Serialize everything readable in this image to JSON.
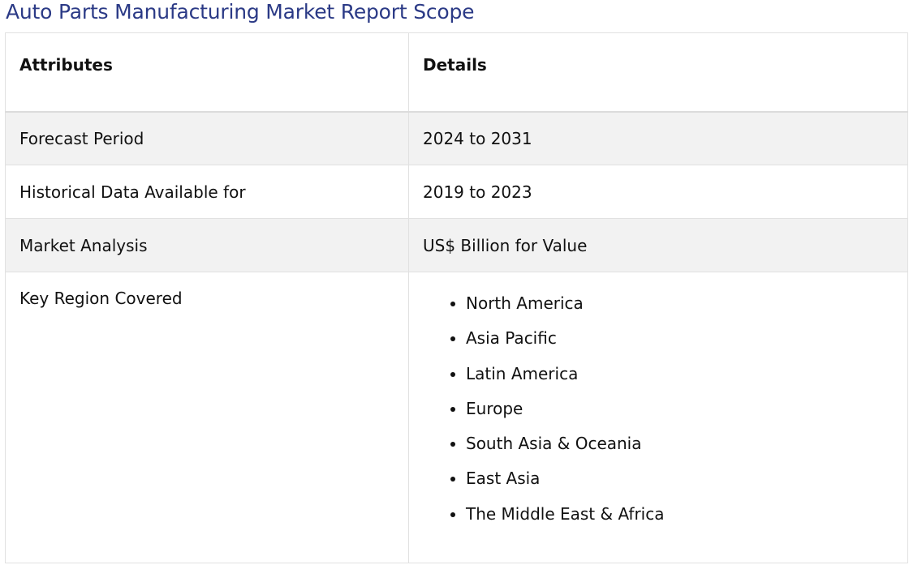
{
  "page": {
    "title": "Auto Parts Manufacturing Market Report Scope"
  },
  "table": {
    "headers": [
      "Attributes",
      "Details"
    ],
    "rows": [
      {
        "attribute": "Forecast Period",
        "detail": "2024 to 2031"
      },
      {
        "attribute": "Historical Data Available for",
        "detail": "2019 to 2023"
      },
      {
        "attribute": "Market Analysis",
        "detail": "US$ Billion for Value"
      }
    ],
    "region_row": {
      "attribute": "Key Region Covered",
      "regions": [
        "North America",
        "Asia Pacific",
        "Latin America",
        "Europe",
        "South Asia & Oceania",
        "East Asia",
        "The Middle East & Africa"
      ]
    }
  },
  "colors": {
    "title": "#2b3a86",
    "shaded_row": "#f2f2f2",
    "border": "#e1e1e1"
  }
}
